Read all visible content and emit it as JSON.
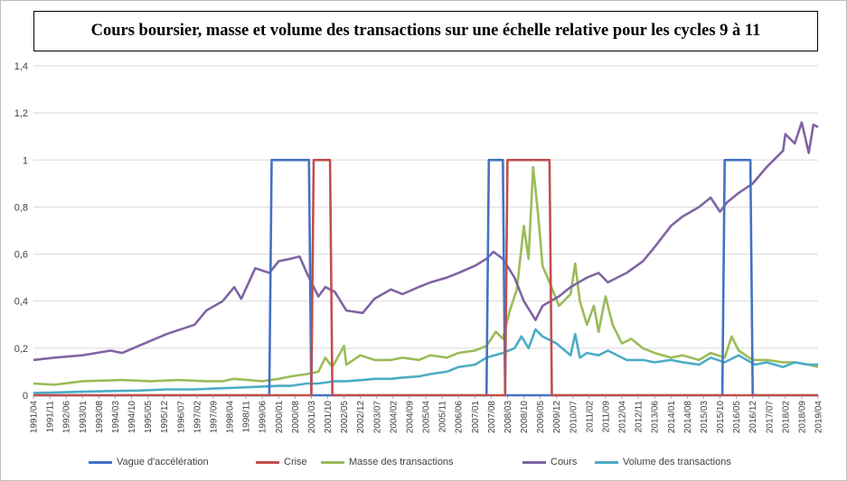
{
  "chart_data": {
    "type": "line",
    "title": "Cours boursier, masse et volume des transactions sur une échelle relative pour les cycles 9 à 11",
    "xlabel": "",
    "ylabel": "",
    "ylim": [
      0,
      1.4
    ],
    "yticks": [
      "0",
      "0,2",
      "0,4",
      "0,6",
      "0,8",
      "1",
      "1,2",
      "1,4"
    ],
    "grid": "horizontal",
    "legend_position": "bottom",
    "x_start": "1991/04",
    "x_end": "2019/04",
    "x_tick_labels": [
      "1991/04",
      "1991/11",
      "1992/06",
      "1993/01",
      "1993/08",
      "1994/03",
      "1994/10",
      "1995/05",
      "1995/12",
      "1996/07",
      "1997/02",
      "1997/09",
      "1998/04",
      "1998/11",
      "1999/06",
      "2000/01",
      "2000/08",
      "2001/03",
      "2001/10",
      "2002/05",
      "2002/12",
      "2003/07",
      "2004/02",
      "2004/09",
      "2005/04",
      "2005/11",
      "2006/06",
      "2007/01",
      "2007/08",
      "2008/03",
      "2008/10",
      "2009/05",
      "2009/12",
      "2010/07",
      "2011/02",
      "2011/09",
      "2012/04",
      "2012/11",
      "2013/06",
      "2014/01",
      "2014/08",
      "2015/03",
      "2015/10",
      "2016/05",
      "2016/12",
      "2017/07",
      "2018/02",
      "2018/09",
      "2019/04"
    ],
    "series": [
      {
        "name": "Vague d'accélération",
        "color": "#4472c4",
        "x": [
          "1991/04",
          "1999/09",
          "1999/10",
          "2001/02",
          "2001/03",
          "2007/06",
          "2007/07",
          "2008/01",
          "2008/02",
          "2015/11",
          "2015/12",
          "2016/11",
          "2016/12",
          "2019/04"
        ],
        "values": [
          0,
          0,
          1,
          1,
          0,
          0,
          1,
          1,
          0,
          0,
          1,
          1,
          0,
          0
        ]
      },
      {
        "name": "Crise",
        "color": "#c0504d",
        "x": [
          "1991/04",
          "2001/03",
          "2001/04",
          "2001/11",
          "2001/12",
          "2008/02",
          "2008/03",
          "2009/09",
          "2009/10",
          "2019/04"
        ],
        "values": [
          0,
          0,
          1,
          1,
          0,
          0,
          1,
          1,
          0,
          0
        ]
      },
      {
        "name": "Masse des transactions",
        "color": "#9bbb59",
        "x": [
          "1991/04",
          "1992/01",
          "1993/01",
          "1994/06",
          "1995/06",
          "1996/06",
          "1997/06",
          "1998/01",
          "1998/06",
          "1999/06",
          "2000/01",
          "2000/06",
          "2001/01",
          "2001/06",
          "2001/09",
          "2001/12",
          "2002/05",
          "2002/06",
          "2002/12",
          "2003/06",
          "2004/01",
          "2004/06",
          "2005/01",
          "2005/06",
          "2006/01",
          "2006/06",
          "2007/01",
          "2007/06",
          "2007/10",
          "2008/01",
          "2008/04",
          "2008/07",
          "2008/10",
          "2008/12",
          "2009/02",
          "2009/04",
          "2009/06",
          "2009/09",
          "2010/01",
          "2010/06",
          "2010/08",
          "2010/10",
          "2011/01",
          "2011/04",
          "2011/06",
          "2011/09",
          "2011/12",
          "2012/04",
          "2012/08",
          "2013/01",
          "2013/06",
          "2014/01",
          "2014/06",
          "2015/01",
          "2015/06",
          "2015/12",
          "2016/03",
          "2016/06",
          "2016/12",
          "2017/06",
          "2018/01",
          "2018/06",
          "2018/12",
          "2019/04"
        ],
        "values": [
          0.05,
          0.045,
          0.06,
          0.065,
          0.06,
          0.065,
          0.06,
          0.06,
          0.07,
          0.06,
          0.07,
          0.08,
          0.09,
          0.1,
          0.16,
          0.12,
          0.21,
          0.13,
          0.17,
          0.15,
          0.15,
          0.16,
          0.15,
          0.17,
          0.16,
          0.18,
          0.19,
          0.21,
          0.27,
          0.24,
          0.36,
          0.45,
          0.72,
          0.58,
          0.97,
          0.78,
          0.55,
          0.48,
          0.38,
          0.43,
          0.56,
          0.4,
          0.3,
          0.38,
          0.27,
          0.42,
          0.3,
          0.22,
          0.24,
          0.2,
          0.18,
          0.16,
          0.17,
          0.15,
          0.18,
          0.16,
          0.25,
          0.19,
          0.15,
          0.15,
          0.14,
          0.14,
          0.13,
          0.12
        ]
      },
      {
        "name": "Cours",
        "color": "#8064a2",
        "x": [
          "1991/04",
          "1992/01",
          "1993/01",
          "1994/01",
          "1994/06",
          "1995/01",
          "1996/01",
          "1997/01",
          "1997/06",
          "1998/01",
          "1998/06",
          "1998/09",
          "1999/03",
          "1999/09",
          "2000/01",
          "2000/06",
          "2000/10",
          "2001/01",
          "2001/06",
          "2001/09",
          "2002/01",
          "2002/06",
          "2003/01",
          "2003/06",
          "2004/01",
          "2004/06",
          "2005/01",
          "2005/06",
          "2006/01",
          "2006/06",
          "2007/01",
          "2007/06",
          "2007/09",
          "2008/01",
          "2008/06",
          "2008/10",
          "2009/03",
          "2009/06",
          "2010/01",
          "2010/06",
          "2011/01",
          "2011/06",
          "2011/10",
          "2012/06",
          "2013/01",
          "2013/06",
          "2014/01",
          "2014/06",
          "2015/01",
          "2015/06",
          "2015/10",
          "2016/01",
          "2016/06",
          "2016/12",
          "2017/06",
          "2018/01",
          "2018/02",
          "2018/06",
          "2018/09",
          "2018/12",
          "2019/02",
          "2019/04"
        ],
        "values": [
          0.15,
          0.16,
          0.17,
          0.19,
          0.18,
          0.21,
          0.26,
          0.3,
          0.36,
          0.4,
          0.46,
          0.41,
          0.54,
          0.52,
          0.57,
          0.58,
          0.59,
          0.52,
          0.42,
          0.46,
          0.44,
          0.36,
          0.35,
          0.41,
          0.45,
          0.43,
          0.46,
          0.48,
          0.5,
          0.52,
          0.55,
          0.58,
          0.61,
          0.58,
          0.5,
          0.4,
          0.32,
          0.38,
          0.42,
          0.46,
          0.5,
          0.52,
          0.48,
          0.52,
          0.57,
          0.63,
          0.72,
          0.76,
          0.8,
          0.84,
          0.78,
          0.82,
          0.86,
          0.9,
          0.97,
          1.04,
          1.11,
          1.07,
          1.16,
          1.03,
          1.15,
          1.14
        ]
      },
      {
        "name": "Volume des transactions",
        "color": "#4bacc6",
        "x": [
          "1991/04",
          "1992/01",
          "1993/01",
          "1994/01",
          "1995/01",
          "1996/01",
          "1997/01",
          "1998/01",
          "1999/01",
          "2000/01",
          "2000/06",
          "2001/01",
          "2001/06",
          "2002/01",
          "2002/06",
          "2003/01",
          "2003/06",
          "2004/01",
          "2004/06",
          "2005/01",
          "2005/06",
          "2006/01",
          "2006/06",
          "2007/01",
          "2007/06",
          "2008/01",
          "2008/06",
          "2008/09",
          "2008/12",
          "2009/03",
          "2009/06",
          "2009/12",
          "2010/06",
          "2010/08",
          "2010/10",
          "2011/01",
          "2011/06",
          "2011/10",
          "2012/06",
          "2013/01",
          "2013/06",
          "2014/01",
          "2014/06",
          "2015/01",
          "2015/06",
          "2015/12",
          "2016/06",
          "2017/01",
          "2017/06",
          "2018/01",
          "2018/06",
          "2018/12",
          "2019/04"
        ],
        "values": [
          0.01,
          0.012,
          0.015,
          0.018,
          0.02,
          0.025,
          0.025,
          0.03,
          0.035,
          0.04,
          0.04,
          0.05,
          0.05,
          0.06,
          0.06,
          0.065,
          0.07,
          0.07,
          0.075,
          0.08,
          0.09,
          0.1,
          0.12,
          0.13,
          0.16,
          0.18,
          0.2,
          0.25,
          0.2,
          0.28,
          0.25,
          0.22,
          0.17,
          0.26,
          0.16,
          0.18,
          0.17,
          0.19,
          0.15,
          0.15,
          0.14,
          0.15,
          0.14,
          0.13,
          0.16,
          0.14,
          0.17,
          0.13,
          0.14,
          0.12,
          0.14,
          0.13,
          0.13
        ]
      }
    ]
  }
}
